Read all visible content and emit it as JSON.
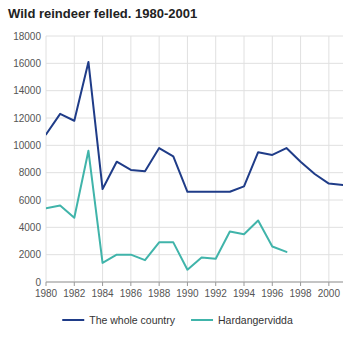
{
  "chart_data": {
    "type": "line",
    "title": "Wild reindeer felled. 1980-2001",
    "x": [
      1980,
      1981,
      1982,
      1983,
      1984,
      1985,
      1986,
      1987,
      1988,
      1989,
      1990,
      1991,
      1992,
      1993,
      1994,
      1995,
      1996,
      1997,
      1998,
      1999,
      2000,
      2001
    ],
    "series": [
      {
        "name": "The whole country",
        "color": "#1f3c88",
        "values": [
          10800,
          12300,
          11800,
          16100,
          6800,
          8800,
          8200,
          8100,
          9800,
          9200,
          6600,
          6600,
          6600,
          6600,
          7000,
          9500,
          9300,
          9800,
          8800,
          7900,
          7200,
          7100
        ]
      },
      {
        "name": "Hardangervidda",
        "color": "#40b4aa",
        "values": [
          5400,
          5600,
          4700,
          9600,
          1400,
          2000,
          2000,
          1600,
          2900,
          2900,
          900,
          1800,
          1700,
          3700,
          3500,
          4500,
          2600,
          2200,
          null,
          null,
          null,
          null
        ]
      }
    ],
    "xlim": [
      1980,
      2001
    ],
    "xticks": [
      1980,
      1982,
      1984,
      1986,
      1988,
      1990,
      1992,
      1994,
      1996,
      1998,
      2000
    ],
    "ylim": [
      0,
      18000
    ],
    "yticks": [
      0,
      2000,
      4000,
      6000,
      8000,
      10000,
      12000,
      14000,
      16000,
      18000
    ],
    "grid": true,
    "legend": "bottom"
  }
}
